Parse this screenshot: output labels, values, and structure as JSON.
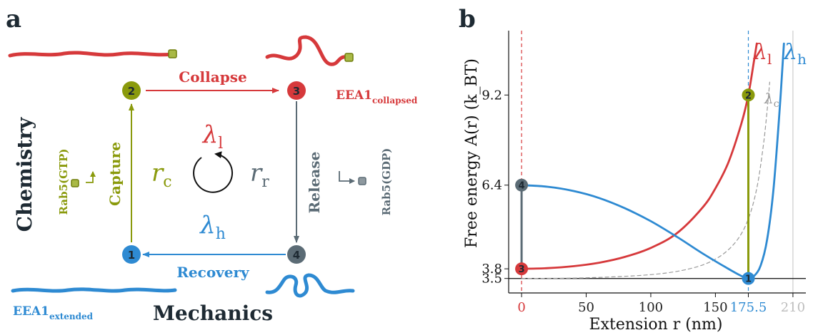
{
  "colors": {
    "red": "#d6393b",
    "blue": "#2e8ad2",
    "olive": "#8a9a0c",
    "slate": "#5b6b75",
    "dark": "#1e2a33",
    "lightgray": "#bdbdbd"
  },
  "panel_a": {
    "label": "a",
    "states": {
      "s1": "1",
      "s2": "2",
      "s3": "3",
      "s4": "4"
    },
    "arrows": {
      "collapse": "Collapse",
      "release": "Release",
      "recovery": "Recovery",
      "capture": "Capture"
    },
    "cycle": {
      "lambda_l": "λ",
      "lambda_l_sub": "l",
      "lambda_h": "λ",
      "lambda_h_sub": "h",
      "rc": "r",
      "rc_sub": "c",
      "rr": "r",
      "rr_sub": "r"
    },
    "molecules": {
      "collapsed": "EEA1",
      "collapsed_sub": "collapsed",
      "extended": "EEA1",
      "extended_sub": "extended"
    },
    "rab_gtp": "Rab5(GTP)",
    "rab_gdp": "Rab5(GDP)",
    "axis_chemistry": "Chemistry",
    "axis_mechanics": "Mechanics"
  },
  "panel_b": {
    "label": "b",
    "curve_labels": {
      "l": "λ",
      "l_sub": "l",
      "h": "λ",
      "h_sub": "h",
      "c": "λ",
      "c_sub": "c"
    },
    "state_markers": {
      "s1": "1",
      "s2": "2",
      "s3": "3",
      "s4": "4"
    }
  },
  "chart_data": {
    "type": "line",
    "xlabel": "Extension  r  (nm)",
    "ylabel": "Free energy  A(r)  (k_BT)",
    "xlim": [
      -10,
      220
    ],
    "ylim": [
      3.05,
      11.2
    ],
    "x_ticks": [
      {
        "value": 0,
        "label": "0",
        "color": "#d6393b"
      },
      {
        "value": 50,
        "label": "50",
        "color": "#222222"
      },
      {
        "value": 100,
        "label": "100",
        "color": "#222222"
      },
      {
        "value": 150,
        "label": "150",
        "color": "#222222"
      },
      {
        "value": 175.5,
        "label": "175.5",
        "color": "#2e8ad2"
      },
      {
        "value": 210,
        "label": "210",
        "color": "#bdbdbd"
      }
    ],
    "y_ticks": [
      {
        "value": 3.5,
        "label": "3.5"
      },
      {
        "value": 3.8,
        "label": "3.8"
      },
      {
        "value": 6.4,
        "label": "6.4"
      },
      {
        "value": 9.2,
        "label": "9.2"
      }
    ],
    "series": [
      {
        "name": "λl",
        "color": "#d6393b",
        "dash": "",
        "x": [
          0,
          20,
          40,
          60,
          80,
          100,
          120,
          140,
          150,
          160,
          170,
          175.5,
          180,
          182
        ],
        "y": [
          3.8,
          3.82,
          3.88,
          3.99,
          4.17,
          4.45,
          4.9,
          5.7,
          6.3,
          7.1,
          8.3,
          9.2,
          10.3,
          10.8
        ]
      },
      {
        "name": "λh",
        "color": "#2e8ad2",
        "dash": "",
        "x": [
          0,
          20,
          40,
          60,
          80,
          100,
          120,
          140,
          160,
          170,
          175.5,
          180,
          185,
          190,
          195,
          200,
          203
        ],
        "y": [
          6.4,
          6.35,
          6.22,
          6.0,
          5.68,
          5.28,
          4.8,
          4.28,
          3.8,
          3.58,
          3.5,
          3.58,
          3.9,
          4.7,
          6.3,
          8.9,
          10.8
        ]
      },
      {
        "name": "λc",
        "color": "#9a9a9a",
        "dash": "5,4",
        "x": [
          0,
          50,
          100,
          130,
          150,
          165,
          175,
          182,
          187,
          190,
          192
        ],
        "y": [
          3.5,
          3.52,
          3.62,
          3.8,
          4.1,
          4.6,
          5.3,
          6.3,
          7.6,
          8.7,
          9.6
        ]
      }
    ],
    "vertical_transitions": [
      {
        "x": 175.5,
        "y0": 3.5,
        "y1": 9.2,
        "color": "#8a9a0c"
      },
      {
        "x": 0,
        "y0": 3.8,
        "y1": 6.4,
        "color": "#5b6b75"
      }
    ],
    "reference_lines": [
      {
        "axis": "x",
        "value": 0,
        "color": "#d6393b",
        "dash": "5,4"
      },
      {
        "axis": "x",
        "value": 175.5,
        "color": "#2e8ad2",
        "dash": "5,4"
      },
      {
        "axis": "x",
        "value": 210,
        "color": "#cccccc",
        "dash": ""
      },
      {
        "axis": "y",
        "value": 3.5,
        "color": "#222222",
        "dash": ""
      }
    ],
    "points": [
      {
        "state": "1",
        "x": 175.5,
        "y": 3.5,
        "color": "#2e8ad2"
      },
      {
        "state": "2",
        "x": 175.5,
        "y": 9.2,
        "color": "#8a9a0c"
      },
      {
        "state": "3",
        "x": 0,
        "y": 3.8,
        "color": "#d6393b"
      },
      {
        "state": "4",
        "x": 0,
        "y": 6.4,
        "color": "#5b6b75"
      }
    ]
  }
}
